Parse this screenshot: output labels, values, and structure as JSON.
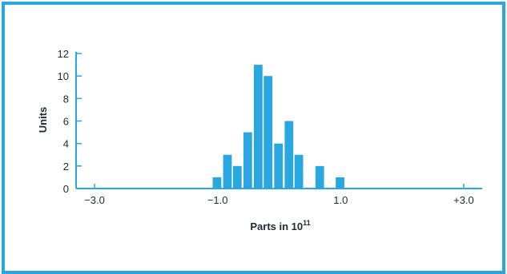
{
  "colors": {
    "frame": "#29a7e1",
    "bar": "#29a7e1",
    "axis": "#29a7e1",
    "text": "#1f2a33"
  },
  "chart_data": {
    "type": "bar",
    "title": "",
    "xlabel": "Parts in 10",
    "xlabel_superscript": "11",
    "ylabel": "Units",
    "xlim": [
      -3.3,
      3.3
    ],
    "ylim": [
      0,
      12
    ],
    "x_tick_labels": [
      {
        "value": -3.0,
        "label": "−3.0"
      },
      {
        "value": -1.0,
        "label": "−1.0"
      },
      {
        "value": 1.0,
        "label": "1.0"
      },
      {
        "value": 3.0,
        "label": "+3.0"
      }
    ],
    "y_ticks": [
      0,
      2,
      4,
      6,
      8,
      10,
      12
    ],
    "bin_width": 0.166,
    "bins": [
      {
        "x": -1.01,
        "value": 1
      },
      {
        "x": -0.84,
        "value": 3
      },
      {
        "x": -0.68,
        "value": 2
      },
      {
        "x": -0.51,
        "value": 5
      },
      {
        "x": -0.34,
        "value": 11
      },
      {
        "x": -0.18,
        "value": 10
      },
      {
        "x": -0.01,
        "value": 4
      },
      {
        "x": 0.16,
        "value": 6
      },
      {
        "x": 0.32,
        "value": 3
      },
      {
        "x": 0.66,
        "value": 2
      },
      {
        "x": 0.99,
        "value": 1
      }
    ],
    "grid": false,
    "legend": "none"
  }
}
